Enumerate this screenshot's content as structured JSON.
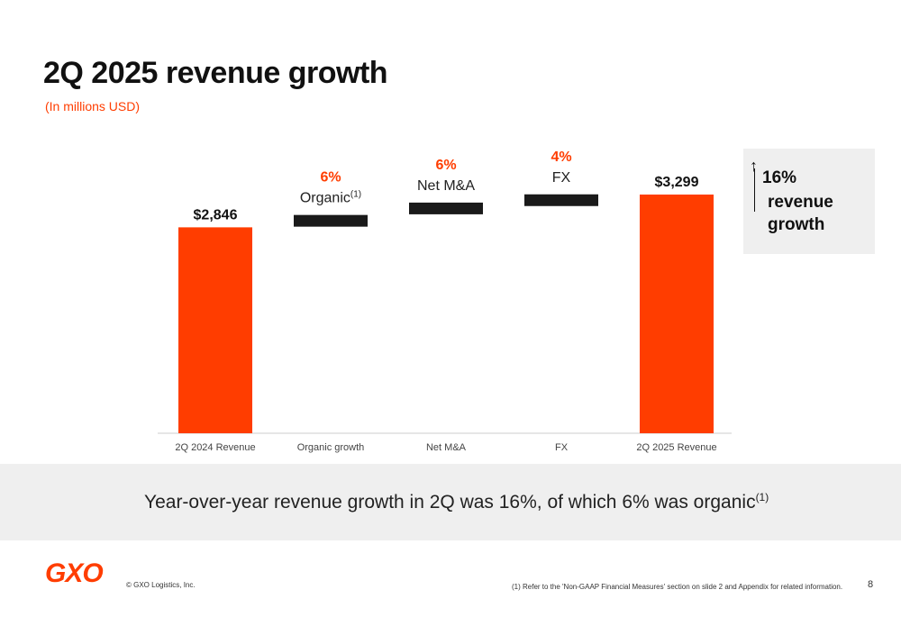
{
  "header": {
    "title": "2Q 2025 revenue growth",
    "subtitle": "(In millions USD)"
  },
  "chart_data": {
    "type": "bar",
    "subtype": "waterfall",
    "categories": [
      "2Q 2024 Revenue",
      "Organic growth",
      "Net M&A",
      "FX",
      "2Q 2025 Revenue"
    ],
    "values": [
      2846,
      171,
      171,
      114,
      3299
    ],
    "ylim": [
      0,
      3299
    ],
    "bars": [
      {
        "category": "2Q 2024 Revenue",
        "kind": "total",
        "value": 2846,
        "value_label": "$2,846",
        "pct_label": "",
        "name_label": "",
        "name_sup": ""
      },
      {
        "category": "Organic growth",
        "kind": "delta",
        "value": 171,
        "value_label": "",
        "pct_label": "6%",
        "name_label": "Organic",
        "name_sup": "(1)"
      },
      {
        "category": "Net M&A",
        "kind": "delta",
        "value": 171,
        "value_label": "",
        "pct_label": "6%",
        "name_label": "Net M&A",
        "name_sup": ""
      },
      {
        "category": "FX",
        "kind": "delta",
        "value": 114,
        "value_label": "",
        "pct_label": "4%",
        "name_label": "FX",
        "name_sup": ""
      },
      {
        "category": "2Q 2025 Revenue",
        "kind": "total",
        "value": 3299,
        "value_label": "$3,299",
        "pct_label": "",
        "name_label": "",
        "name_sup": ""
      }
    ],
    "grid": false,
    "colors": {
      "total": "#ff3d00",
      "delta": "#1a1a1a",
      "pct": "#ff3d00",
      "axis": "#cccccc",
      "tick": "#444444"
    }
  },
  "callout": {
    "arrow": "↑",
    "pct": "16%",
    "text": "revenue growth"
  },
  "band": {
    "message": "Year-over-year revenue growth in 2Q was 16%, of which 6% was organic",
    "sup": "(1)"
  },
  "footer": {
    "logo": "GXO",
    "copyright": "© GXO Logistics, Inc.",
    "footnote": "(1) Refer to the 'Non-GAAP Financial Measures' section on slide 2 and Appendix for related information.",
    "page": "8"
  },
  "brand_color": "#ff3d00"
}
